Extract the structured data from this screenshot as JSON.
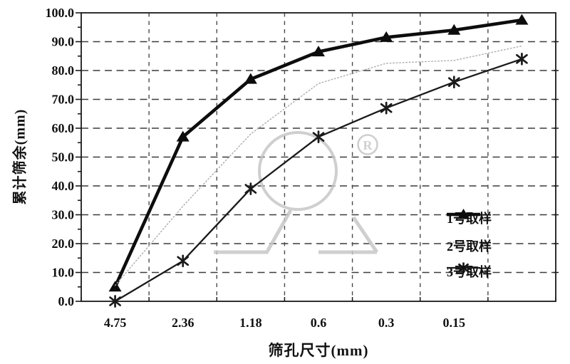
{
  "figure": {
    "background": "#ffffff",
    "text_color": "#111111"
  },
  "chart_data": {
    "type": "line",
    "title": "",
    "xlabel": "筛孔尺寸(mm)",
    "ylabel": "累计筛余(mm)",
    "categories": [
      "4.75",
      "2.36",
      "1.18",
      "0.6",
      "0.3",
      "0.15",
      ""
    ],
    "y_ticks": [
      0,
      10,
      20,
      30,
      40,
      50,
      60,
      70,
      80,
      90,
      100
    ],
    "y_tick_labels": [
      "0.0",
      "10.0",
      "20.0",
      "30.0",
      "40.0",
      "50.0",
      "60.0",
      "70.0",
      "80.0",
      "90.0",
      "100.0"
    ],
    "ylim": [
      0,
      100
    ],
    "grid": "dashed-horizontal-and-vertical",
    "legend_position": "inside-right-lower",
    "series": [
      {
        "name": "1号取样",
        "marker": "filled-triangle",
        "line": "thick-solid",
        "color": "#0d0d0d",
        "values": [
          5,
          57,
          77,
          86.5,
          91.5,
          94,
          97.5
        ]
      },
      {
        "name": "2号取样",
        "marker": "none",
        "line": "dotted",
        "color": "#ababab",
        "values": [
          5.5,
          33,
          58,
          75.5,
          82.5,
          83.5,
          88.5
        ]
      },
      {
        "name": "3号取样",
        "marker": "asterisk",
        "line": "solid",
        "color": "#1a1a1a",
        "values": [
          0,
          14,
          39,
          57,
          67,
          76,
          84
        ]
      }
    ],
    "watermark": {
      "registered_symbol": "R",
      "color": "#c7c7c7"
    }
  }
}
